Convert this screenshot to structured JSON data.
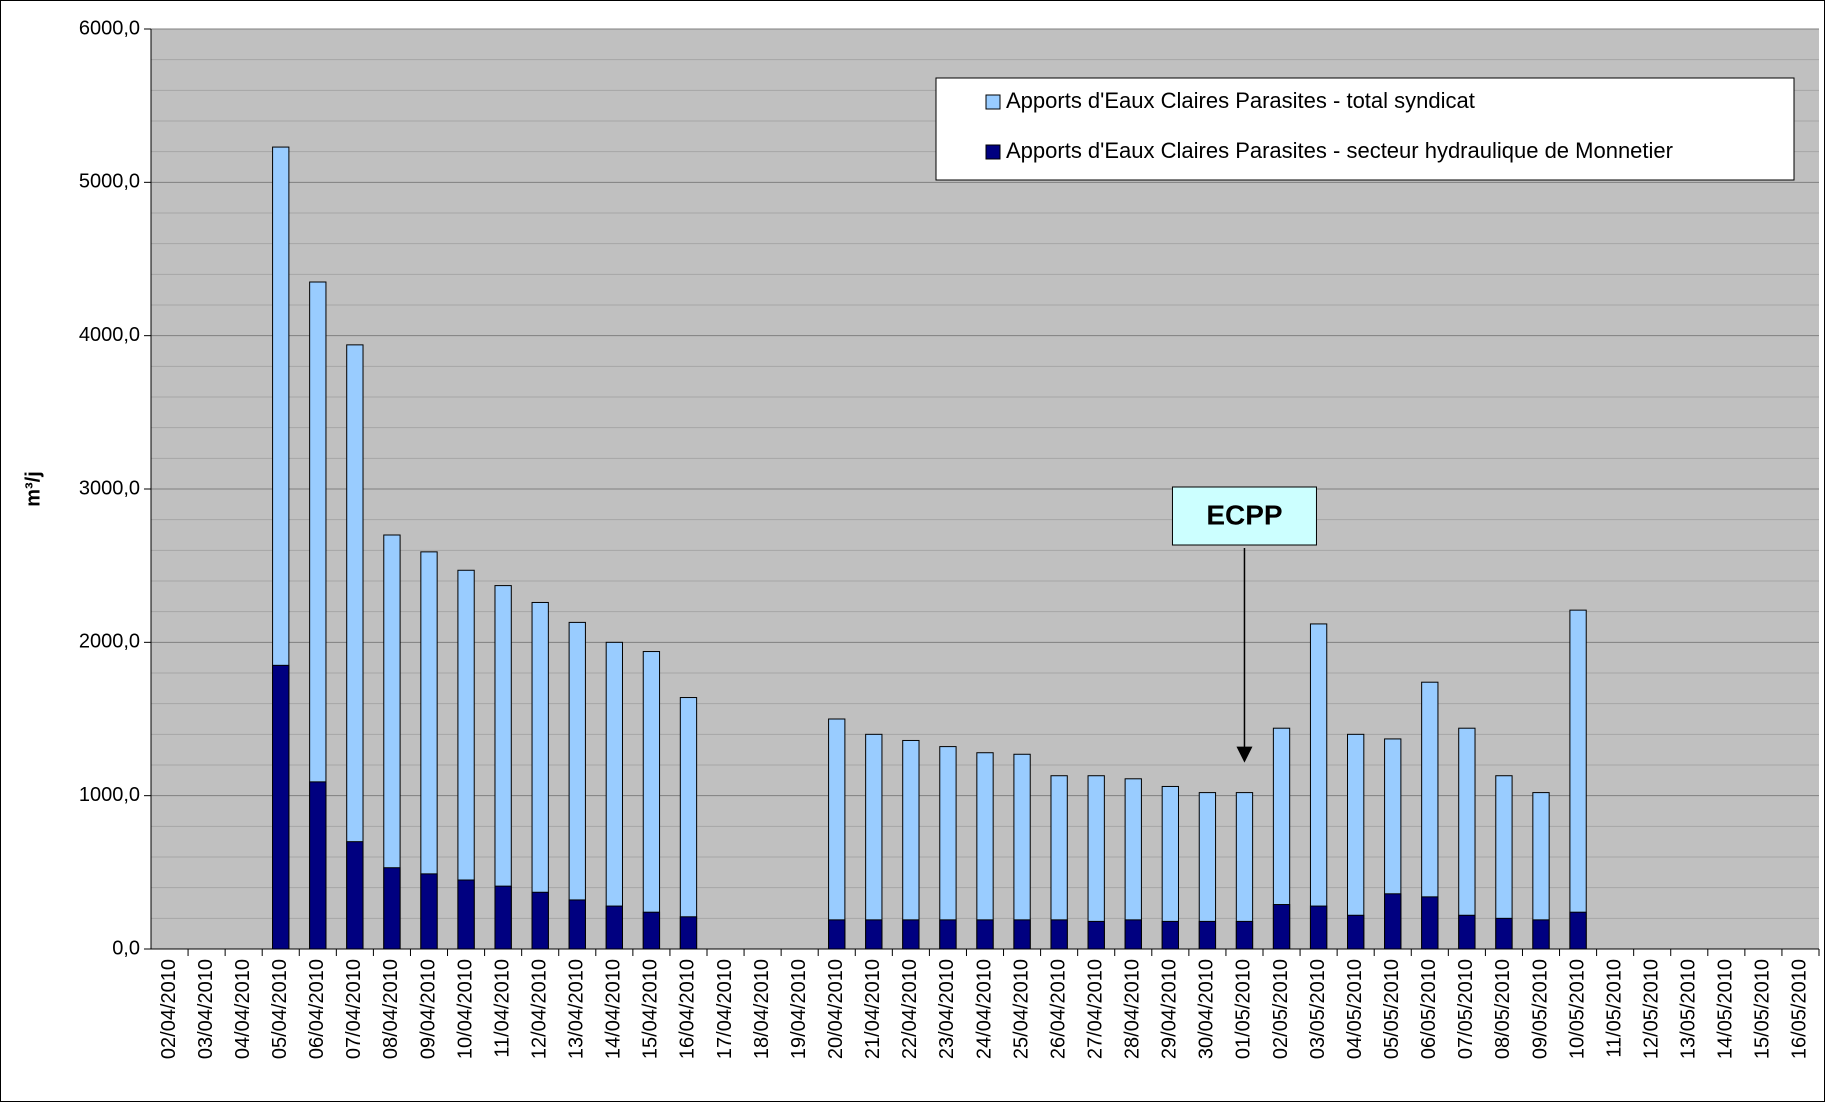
{
  "chart_data": {
    "type": "bar",
    "y_label": "m³/j",
    "categories": [
      "02/04/2010",
      "03/04/2010",
      "04/04/2010",
      "05/04/2010",
      "06/04/2010",
      "07/04/2010",
      "08/04/2010",
      "09/04/2010",
      "10/04/2010",
      "11/04/2010",
      "12/04/2010",
      "13/04/2010",
      "14/04/2010",
      "15/04/2010",
      "16/04/2010",
      "17/04/2010",
      "18/04/2010",
      "19/04/2010",
      "20/04/2010",
      "21/04/2010",
      "22/04/2010",
      "23/04/2010",
      "24/04/2010",
      "25/04/2010",
      "26/04/2010",
      "27/04/2010",
      "28/04/2010",
      "29/04/2010",
      "30/04/2010",
      "01/05/2010",
      "02/05/2010",
      "03/05/2010",
      "04/05/2010",
      "05/05/2010",
      "06/05/2010",
      "07/05/2010",
      "08/05/2010",
      "09/05/2010",
      "10/05/2010",
      "11/05/2010",
      "12/05/2010",
      "13/05/2010",
      "14/05/2010",
      "15/05/2010",
      "16/05/2010"
    ],
    "series": [
      {
        "name": "Apports d'Eaux Claires Parasites - total syndicat",
        "color": "#99ccff",
        "values": [
          null,
          null,
          null,
          5230,
          4350,
          3940,
          2700,
          2590,
          2470,
          2370,
          2260,
          2130,
          2000,
          1940,
          1640,
          null,
          null,
          null,
          1500,
          1400,
          1360,
          1320,
          1280,
          1270,
          1130,
          1130,
          1110,
          1060,
          1020,
          1020,
          1440,
          2120,
          1400,
          1370,
          1740,
          1440,
          1130,
          1020,
          2210,
          null,
          null,
          null,
          null,
          null,
          null
        ]
      },
      {
        "name": "Apports d'Eaux Claires Parasites - secteur hydraulique de Monnetier",
        "color": "#000080",
        "values": [
          null,
          null,
          null,
          1850,
          1090,
          700,
          530,
          490,
          450,
          410,
          370,
          320,
          280,
          240,
          210,
          null,
          null,
          null,
          190,
          190,
          190,
          190,
          190,
          190,
          190,
          180,
          190,
          180,
          180,
          180,
          290,
          280,
          220,
          360,
          340,
          220,
          200,
          190,
          240,
          null,
          null,
          null,
          null,
          null,
          null
        ]
      }
    ],
    "overlap": true,
    "ylim": [
      0,
      6000
    ],
    "yticks": [
      {
        "value": 0,
        "label": "0,0"
      },
      {
        "value": 1000,
        "label": "1000,0"
      },
      {
        "value": 2000,
        "label": "2000,0"
      },
      {
        "value": 3000,
        "label": "3000,0"
      },
      {
        "value": 4000,
        "label": "4000,0"
      },
      {
        "value": 5000,
        "label": "5000,0"
      },
      {
        "value": 6000,
        "label": "6000,0"
      }
    ],
    "yminorticks": [
      200,
      400,
      600,
      800,
      1200,
      1400,
      1600,
      1800,
      2200,
      2400,
      2600,
      2800,
      3200,
      3400,
      3600,
      3800,
      4200,
      4400,
      4600,
      4800,
      5200,
      5400,
      5600,
      5800
    ],
    "grid": true,
    "background": "#c0c0c0",
    "legend": "upper right",
    "annotation": {
      "text": "ECPP",
      "category": "01/05/2010"
    }
  }
}
